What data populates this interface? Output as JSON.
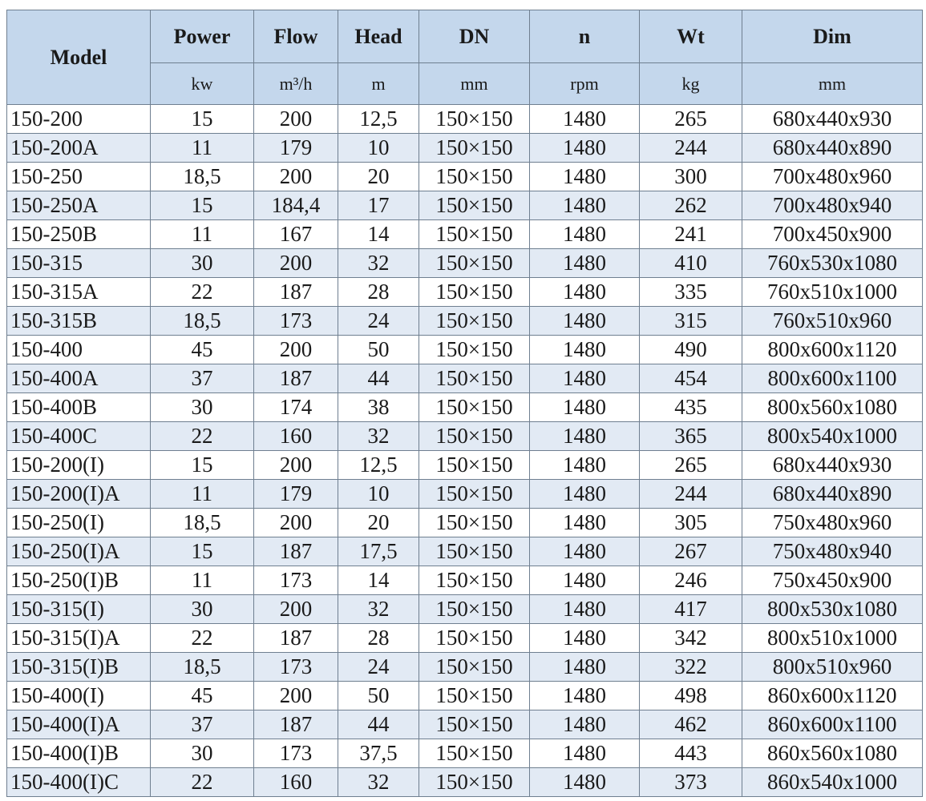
{
  "header": {
    "columns": [
      "Model",
      "Power",
      "Flow",
      "Head",
      "DN",
      "n",
      "Wt",
      "Dim"
    ],
    "units": [
      "kw",
      "m³/h",
      "m",
      "mm",
      "rpm",
      "kg",
      "mm"
    ]
  },
  "colors": {
    "header_bg": "#c4d7ec",
    "alt_row_bg": "#e2eaf4",
    "border": "#6f7f90"
  },
  "rows": [
    [
      "150-200",
      "15",
      "200",
      "12,5",
      "150×150",
      "1480",
      "265",
      "680x440x930"
    ],
    [
      "150-200A",
      "11",
      "179",
      "10",
      "150×150",
      "1480",
      "244",
      "680x440x890"
    ],
    [
      "150-250",
      "18,5",
      "200",
      "20",
      "150×150",
      "1480",
      "300",
      "700x480x960"
    ],
    [
      "150-250A",
      "15",
      "184,4",
      "17",
      "150×150",
      "1480",
      "262",
      "700x480x940"
    ],
    [
      "150-250B",
      "11",
      "167",
      "14",
      "150×150",
      "1480",
      "241",
      "700x450x900"
    ],
    [
      "150-315",
      "30",
      "200",
      "32",
      "150×150",
      "1480",
      "410",
      "760x530x1080"
    ],
    [
      "150-315A",
      "22",
      "187",
      "28",
      "150×150",
      "1480",
      "335",
      "760x510x1000"
    ],
    [
      "150-315B",
      "18,5",
      "173",
      "24",
      "150×150",
      "1480",
      "315",
      "760x510x960"
    ],
    [
      "150-400",
      "45",
      "200",
      "50",
      "150×150",
      "1480",
      "490",
      "800x600x1120"
    ],
    [
      "150-400A",
      "37",
      "187",
      "44",
      "150×150",
      "1480",
      "454",
      "800x600x1100"
    ],
    [
      "150-400B",
      "30",
      "174",
      "38",
      "150×150",
      "1480",
      "435",
      "800x560x1080"
    ],
    [
      "150-400C",
      "22",
      "160",
      "32",
      "150×150",
      "1480",
      "365",
      "800x540x1000"
    ],
    [
      "150-200(I)",
      "15",
      "200",
      "12,5",
      "150×150",
      "1480",
      "265",
      "680x440x930"
    ],
    [
      "150-200(I)A",
      "11",
      "179",
      "10",
      "150×150",
      "1480",
      "244",
      "680x440x890"
    ],
    [
      "150-250(I)",
      "18,5",
      "200",
      "20",
      "150×150",
      "1480",
      "305",
      "750x480x960"
    ],
    [
      "150-250(I)A",
      "15",
      "187",
      "17,5",
      "150×150",
      "1480",
      "267",
      "750x480x940"
    ],
    [
      "150-250(I)B",
      "11",
      "173",
      "14",
      "150×150",
      "1480",
      "246",
      "750x450x900"
    ],
    [
      "150-315(I)",
      "30",
      "200",
      "32",
      "150×150",
      "1480",
      "417",
      "800x530x1080"
    ],
    [
      "150-315(I)A",
      "22",
      "187",
      "28",
      "150×150",
      "1480",
      "342",
      "800x510x1000"
    ],
    [
      "150-315(I)B",
      "18,5",
      "173",
      "24",
      "150×150",
      "1480",
      "322",
      "800x510x960"
    ],
    [
      "150-400(I)",
      "45",
      "200",
      "50",
      "150×150",
      "1480",
      "498",
      "860x600x1120"
    ],
    [
      "150-400(I)A",
      "37",
      "187",
      "44",
      "150×150",
      "1480",
      "462",
      "860x600x1100"
    ],
    [
      "150-400(I)B",
      "30",
      "173",
      "37,5",
      "150×150",
      "1480",
      "443",
      "860x560x1080"
    ],
    [
      "150-400(I)C",
      "22",
      "160",
      "32",
      "150×150",
      "1480",
      "373",
      "860x540x1000"
    ]
  ]
}
